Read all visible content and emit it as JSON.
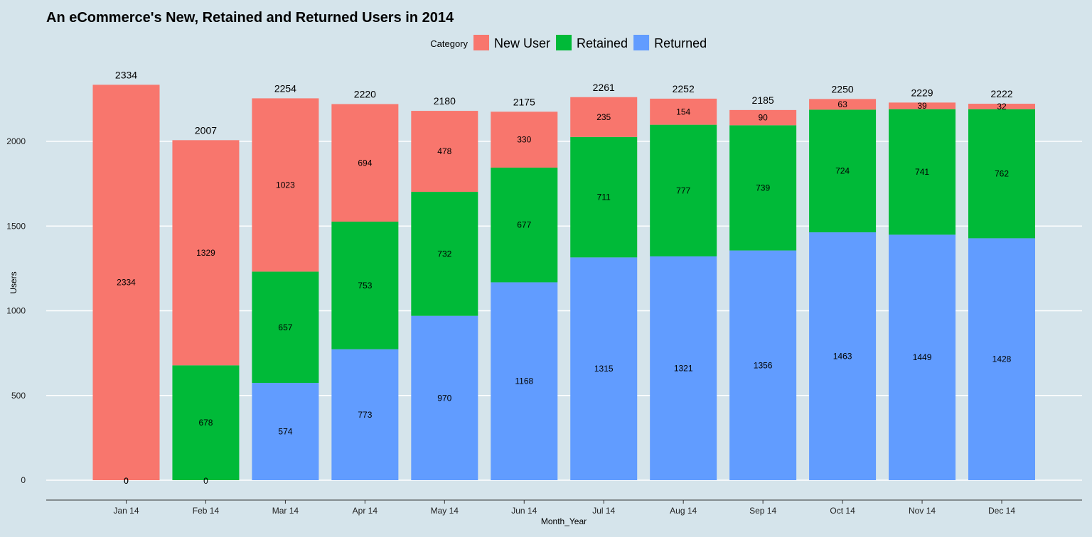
{
  "chart_data": {
    "type": "bar",
    "stacked": true,
    "title": "An eCommerce's New, Retained and Returned Users in 2014",
    "xlabel": "Month_Year",
    "ylabel": "Users",
    "ylim": [
      0,
      2350
    ],
    "yticks": [
      0,
      500,
      1000,
      1500,
      2000
    ],
    "legend": {
      "title": "Category",
      "position": "top"
    },
    "categories": [
      "Jan 14",
      "Feb 14",
      "Mar 14",
      "Apr 14",
      "May 14",
      "Jun 14",
      "Jul 14",
      "Aug 14",
      "Sep 14",
      "Oct 14",
      "Nov 14",
      "Dec 14"
    ],
    "series": [
      {
        "name": "Returned",
        "color": "#619cff",
        "values": [
          0,
          0,
          574,
          773,
          970,
          1168,
          1315,
          1321,
          1356,
          1463,
          1449,
          1428
        ]
      },
      {
        "name": "Retained",
        "color": "#00ba38",
        "values": [
          0,
          678,
          657,
          753,
          732,
          677,
          711,
          777,
          739,
          724,
          741,
          762
        ]
      },
      {
        "name": "New User",
        "color": "#f8766d",
        "values": [
          2334,
          1329,
          1023,
          694,
          478,
          330,
          235,
          154,
          90,
          63,
          39,
          32
        ]
      }
    ],
    "legend_order": [
      "New User",
      "Retained",
      "Returned"
    ],
    "totals": [
      2334,
      2007,
      2254,
      2220,
      2180,
      2175,
      2261,
      2252,
      2185,
      2250,
      2229,
      2222
    ]
  }
}
